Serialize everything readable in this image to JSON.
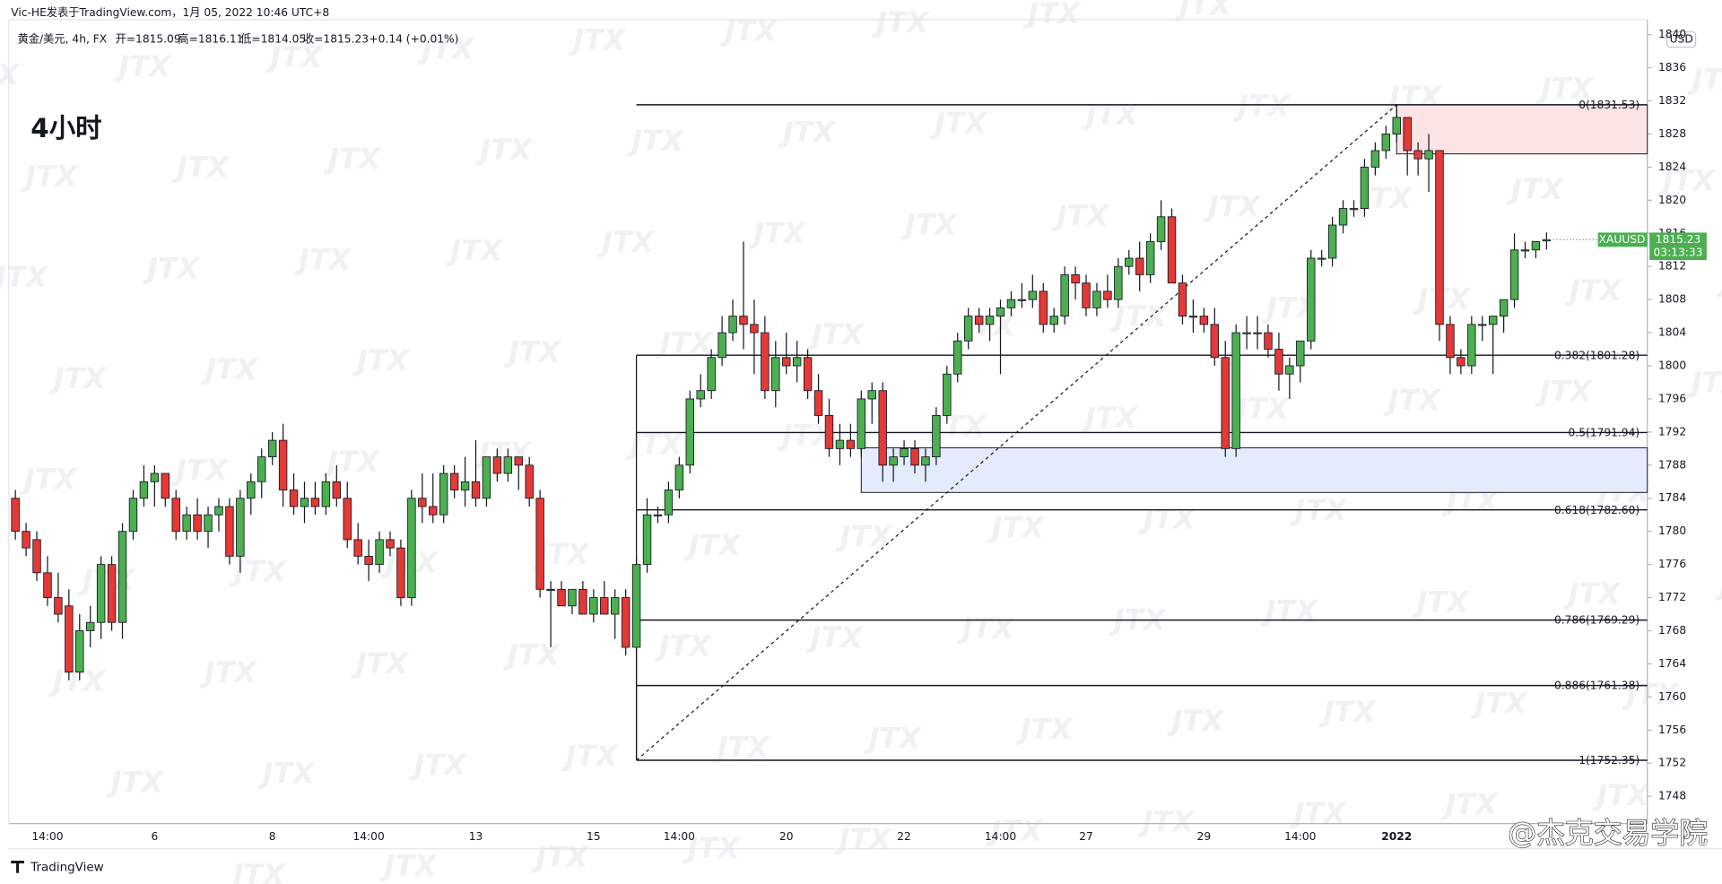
{
  "header": {
    "author": "Vic-HE发表于TradingView.com，1月 05, 2022 10:46 UTC+8"
  },
  "legend": {
    "symbol": "黄金/美元, 4h, FX",
    "open": "开=1815.09",
    "high": "高=1816.11",
    "low": "低=1814.05",
    "close": "收=1815.23",
    "change": "+0.14 (+0.01%)"
  },
  "timeframe_label": "4小时",
  "currency": "USD",
  "footer": "TradingView",
  "watermark": "JTX",
  "signature": "@杰克交易学院",
  "chart_data": {
    "type": "candlestick",
    "up_color": "#4caf50",
    "down_color": "#e53935",
    "ylim": [
      1744.7,
      1841.8
    ],
    "yticks": [
      1748,
      1752,
      1756,
      1760,
      1764,
      1768,
      1772,
      1776,
      1780,
      1784,
      1788,
      1792,
      1796,
      1800,
      1804,
      1808,
      1812,
      1816,
      1820,
      1824,
      1828,
      1832,
      1836,
      1840
    ],
    "categories": [
      null,
      null,
      null,
      "14:00",
      null,
      null,
      null,
      null,
      null,
      null,
      null,
      null,
      null,
      "6",
      null,
      null,
      null,
      null,
      null,
      null,
      null,
      null,
      null,
      null,
      "8",
      null,
      null,
      null,
      null,
      null,
      null,
      null,
      null,
      "14:00",
      null,
      null,
      null,
      null,
      null,
      null,
      null,
      null,
      null,
      "13",
      null,
      null,
      null,
      null,
      null,
      null,
      null,
      null,
      null,
      null,
      "15",
      null,
      null,
      null,
      null,
      null,
      null,
      null,
      "14:00",
      null,
      null,
      null,
      null,
      null,
      null,
      null,
      null,
      null,
      "20",
      null,
      null,
      null,
      null,
      null,
      null,
      null,
      null,
      null,
      null,
      "22",
      null,
      null,
      null,
      null,
      null,
      null,
      null,
      null,
      "14:00",
      null,
      null,
      null,
      null,
      null,
      null,
      null,
      "27",
      null,
      null,
      null,
      null,
      null,
      null,
      null,
      null,
      null,
      null,
      "29",
      null,
      null,
      null,
      null,
      null,
      null,
      null,
      null,
      "14:00",
      null,
      null,
      null,
      null,
      null,
      null,
      null,
      null,
      "2022",
      null,
      null,
      null,
      null,
      null,
      null,
      null,
      null,
      null,
      null,
      null,
      null,
      null,
      null
    ],
    "candles": [
      [
        1784,
        1785,
        1779,
        1780
      ],
      [
        1780,
        1781,
        1777,
        1778
      ],
      [
        1779,
        1780,
        1774,
        1775
      ],
      [
        1775,
        1777,
        1771,
        1772
      ],
      [
        1772,
        1775,
        1769,
        1770
      ],
      [
        1771,
        1773,
        1762,
        1763
      ],
      [
        1763,
        1770,
        1762,
        1768
      ],
      [
        1768,
        1771,
        1766,
        1769
      ],
      [
        1769,
        1777,
        1767,
        1776
      ],
      [
        1776,
        1777,
        1768,
        1769
      ],
      [
        1769,
        1781,
        1767,
        1780
      ],
      [
        1780,
        1785,
        1779,
        1784
      ],
      [
        1784,
        1788,
        1783,
        1786
      ],
      [
        1786,
        1788,
        1783,
        1787
      ],
      [
        1787,
        1787,
        1783,
        1784
      ],
      [
        1784,
        1785,
        1779,
        1780
      ],
      [
        1780,
        1783,
        1779,
        1782
      ],
      [
        1782,
        1784,
        1779,
        1780
      ],
      [
        1780,
        1783,
        1778,
        1782
      ],
      [
        1782,
        1784,
        1780,
        1783
      ],
      [
        1783,
        1784,
        1776,
        1777
      ],
      [
        1777,
        1785,
        1775,
        1784
      ],
      [
        1784,
        1787,
        1782,
        1786
      ],
      [
        1786,
        1790,
        1784,
        1789
      ],
      [
        1789,
        1792,
        1788,
        1791
      ],
      [
        1791,
        1793,
        1783,
        1785
      ],
      [
        1785,
        1787,
        1782,
        1783
      ],
      [
        1783,
        1786,
        1781,
        1784
      ],
      [
        1784,
        1786,
        1782,
        1783
      ],
      [
        1783,
        1787,
        1782,
        1786
      ],
      [
        1786,
        1788,
        1783,
        1784
      ],
      [
        1784,
        1786,
        1778,
        1779
      ],
      [
        1779,
        1781,
        1776,
        1777
      ],
      [
        1777,
        1779,
        1774,
        1776
      ],
      [
        1776,
        1780,
        1775,
        1779
      ],
      [
        1779,
        1780,
        1777,
        1778
      ],
      [
        1778,
        1779,
        1771,
        1772
      ],
      [
        1772,
        1785,
        1771,
        1784
      ],
      [
        1784,
        1787,
        1781,
        1783
      ],
      [
        1783,
        1787,
        1781,
        1782
      ],
      [
        1782,
        1788,
        1781,
        1787
      ],
      [
        1787,
        1788,
        1784,
        1785
      ],
      [
        1785,
        1789,
        1783,
        1786
      ],
      [
        1786,
        1791,
        1783,
        1784
      ],
      [
        1784,
        1789,
        1783,
        1789
      ],
      [
        1789,
        1790,
        1786,
        1787
      ],
      [
        1787,
        1790,
        1786,
        1789
      ],
      [
        1789,
        1789,
        1785,
        1788
      ],
      [
        1788,
        1789,
        1783,
        1784
      ],
      [
        1784,
        1785,
        1772,
        1773
      ],
      [
        1773,
        1774,
        1766,
        1773
      ],
      [
        1773,
        1774,
        1771,
        1771
      ],
      [
        1771,
        1773,
        1770,
        1773
      ],
      [
        1773,
        1774,
        1770,
        1770
      ],
      [
        1770,
        1773,
        1769,
        1772
      ],
      [
        1772,
        1774,
        1770,
        1770
      ],
      [
        1770,
        1773,
        1767,
        1772
      ],
      [
        1772,
        1773,
        1765,
        1766
      ],
      [
        1766,
        1777,
        1752.35,
        1776
      ],
      [
        1776,
        1784,
        1775,
        1782
      ],
      [
        1782,
        1783,
        1781,
        1782
      ],
      [
        1782,
        1786,
        1781,
        1785
      ],
      [
        1785,
        1789,
        1784,
        1788
      ],
      [
        1788,
        1797,
        1787,
        1796
      ],
      [
        1796,
        1799,
        1795,
        1797
      ],
      [
        1797,
        1802,
        1796,
        1801
      ],
      [
        1801,
        1806,
        1800,
        1804
      ],
      [
        1804,
        1808,
        1803,
        1806
      ],
      [
        1806,
        1815,
        1802,
        1805
      ],
      [
        1805,
        1808,
        1799,
        1804
      ],
      [
        1804,
        1806,
        1796,
        1797
      ],
      [
        1797,
        1803,
        1795,
        1801
      ],
      [
        1801,
        1804,
        1799,
        1800
      ],
      [
        1800,
        1803,
        1798,
        1801
      ],
      [
        1801,
        1802,
        1796,
        1797
      ],
      [
        1797,
        1799,
        1793,
        1794
      ],
      [
        1794,
        1796,
        1789,
        1790
      ],
      [
        1790,
        1793,
        1788,
        1791
      ],
      [
        1791,
        1793,
        1789,
        1790
      ],
      [
        1790,
        1797,
        1789,
        1796
      ],
      [
        1796,
        1798,
        1793,
        1797
      ],
      [
        1797,
        1798,
        1786,
        1788
      ],
      [
        1788,
        1790,
        1786,
        1789
      ],
      [
        1789,
        1791,
        1788,
        1790
      ],
      [
        1790,
        1791,
        1787,
        1788
      ],
      [
        1788,
        1790,
        1786,
        1789
      ],
      [
        1789,
        1795,
        1788,
        1794
      ],
      [
        1794,
        1800,
        1793,
        1799
      ],
      [
        1799,
        1804,
        1798,
        1803
      ],
      [
        1803,
        1807,
        1802,
        1806
      ],
      [
        1806,
        1807,
        1804,
        1805
      ],
      [
        1805,
        1807,
        1803,
        1806
      ],
      [
        1806,
        1808,
        1799,
        1807
      ],
      [
        1807,
        1809,
        1806,
        1808
      ],
      [
        1808,
        1810,
        1807,
        1808
      ],
      [
        1808,
        1811,
        1807,
        1809
      ],
      [
        1809,
        1810,
        1804,
        1805
      ],
      [
        1805,
        1807,
        1804,
        1806
      ],
      [
        1806,
        1812,
        1805,
        1811
      ],
      [
        1811,
        1812,
        1808,
        1810
      ],
      [
        1810,
        1811,
        1806,
        1807
      ],
      [
        1807,
        1810,
        1806,
        1809
      ],
      [
        1809,
        1811,
        1807,
        1808
      ],
      [
        1808,
        1813,
        1807,
        1812
      ],
      [
        1812,
        1814,
        1811,
        1813
      ],
      [
        1813,
        1815,
        1809,
        1811
      ],
      [
        1811,
        1816,
        1810,
        1815
      ],
      [
        1815,
        1820,
        1814,
        1818
      ],
      [
        1818,
        1819,
        1810,
        1810
      ],
      [
        1810,
        1811,
        1805,
        1806
      ],
      [
        1806,
        1808,
        1804,
        1806
      ],
      [
        1806,
        1807,
        1804,
        1805
      ],
      [
        1805,
        1807,
        1800,
        1801
      ],
      [
        1801,
        1803,
        1789,
        1790
      ],
      [
        1790,
        1805,
        1789,
        1804
      ],
      [
        1804,
        1806,
        1802,
        1804
      ],
      [
        1804,
        1806,
        1802,
        1804
      ],
      [
        1804,
        1805,
        1801,
        1802
      ],
      [
        1802,
        1804,
        1797,
        1799
      ],
      [
        1799,
        1801,
        1796,
        1800
      ],
      [
        1800,
        1803,
        1798,
        1803
      ],
      [
        1803,
        1814,
        1802,
        1813
      ],
      [
        1813,
        1814,
        1812,
        1813
      ],
      [
        1813,
        1818,
        1812,
        1817
      ],
      [
        1817,
        1820,
        1816,
        1819
      ],
      [
        1819,
        1820,
        1818,
        1819
      ],
      [
        1819,
        1825,
        1818,
        1824
      ],
      [
        1824,
        1827,
        1823,
        1826
      ],
      [
        1826,
        1829,
        1825,
        1828
      ],
      [
        1828,
        1831.53,
        1827,
        1830
      ],
      [
        1830,
        1830,
        1823,
        1826
      ],
      [
        1826,
        1827,
        1823,
        1825
      ],
      [
        1825,
        1828,
        1821,
        1826
      ],
      [
        1826,
        1826,
        1803,
        1805
      ],
      [
        1805,
        1806,
        1799,
        1801
      ],
      [
        1801,
        1802,
        1799,
        1800
      ],
      [
        1800,
        1806,
        1799,
        1805
      ],
      [
        1805,
        1806,
        1803,
        1805
      ],
      [
        1805,
        1806,
        1799,
        1806
      ],
      [
        1806,
        1808,
        1804,
        1808
      ],
      [
        1808,
        1816,
        1807,
        1814
      ],
      [
        1814,
        1815,
        1813,
        1814
      ],
      [
        1814,
        1815,
        1813,
        1815
      ],
      [
        1815.09,
        1816.11,
        1814.05,
        1815.23
      ]
    ],
    "fibonacci": {
      "from": 58,
      "to": 129,
      "levels": [
        {
          "value": 1831.53,
          "label": "0(1831.53)"
        },
        {
          "value": 1801.28,
          "label": "0.382(1801.28)"
        },
        {
          "value": 1791.94,
          "label": "0.5(1791.94)"
        },
        {
          "value": 1782.6,
          "label": "0.618(1782.60)"
        },
        {
          "value": 1769.29,
          "label": "0.786(1769.29)"
        },
        {
          "value": 1761.38,
          "label": "0.886(1761.38)"
        },
        {
          "value": 1752.35,
          "label": "1(1752.35)"
        }
      ]
    },
    "zones": [
      {
        "start": 129,
        "top": 1831.53,
        "bottom": 1825.6,
        "color": "#fce4e4"
      },
      {
        "start": 79,
        "top": 1790.1,
        "bottom": 1784.7,
        "color": "#e3ebfc"
      }
    ],
    "price_tag": {
      "symbol": "XAUUSD",
      "price": 1815.23,
      "countdown": "03:13:33"
    }
  }
}
